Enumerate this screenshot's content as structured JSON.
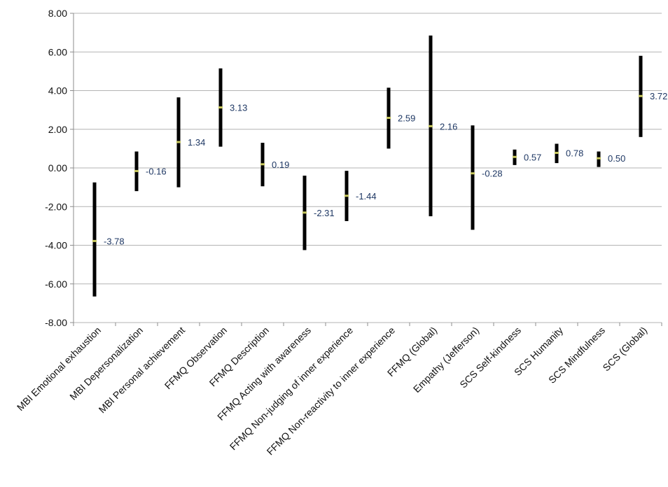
{
  "chart_data": {
    "type": "range",
    "title": "",
    "xlabel": "",
    "ylabel": "",
    "ylim": [
      -8,
      8
    ],
    "y_ticks": [
      "-8.00",
      "-6.00",
      "-4.00",
      "-2.00",
      "0.00",
      "2.00",
      "4.00",
      "6.00",
      "8.00"
    ],
    "grid": true,
    "categories": [
      "MBI Emotional exhaustion",
      "MBI Depersonalization",
      "MBI Personal achievement",
      "FFMQ Observation",
      "FFMQ Description",
      "FFMQ Acting with awareness",
      "FFMQ Non-judging of inner experience",
      "FFMQ Non-reactivity to inner experience",
      "FFMQ (Global)",
      "Empathy (Jefferson)",
      "SCS Self-kindness",
      "SCS Humanity",
      "SCS Mindfulness",
      "SCS (Global)"
    ],
    "low": [
      -6.65,
      -1.2,
      -1.0,
      1.1,
      -0.95,
      -4.25,
      -2.75,
      1.0,
      -2.5,
      -3.2,
      0.15,
      0.25,
      0.05,
      1.6
    ],
    "high": [
      -0.75,
      0.85,
      3.65,
      5.15,
      1.3,
      -0.4,
      -0.15,
      4.15,
      6.85,
      2.2,
      0.95,
      1.25,
      0.85,
      5.8
    ],
    "values": [
      -3.78,
      -0.16,
      1.34,
      3.13,
      0.19,
      -2.31,
      -1.44,
      2.59,
      2.16,
      -0.28,
      0.57,
      0.78,
      0.5,
      3.72
    ],
    "value_labels": [
      "-3.78",
      "-0.16",
      "1.34",
      "3.13",
      "0.19",
      "-2.31",
      "-1.44",
      "2.59",
      "2.16",
      "-0.28",
      "0.57",
      "0.78",
      "0.50",
      "3.72"
    ],
    "colors": {
      "bar": "#000000",
      "marker": "#c8c860",
      "label": "#1f3864",
      "grid": "#b3b3b3",
      "axis": "#8c8c8c"
    }
  }
}
